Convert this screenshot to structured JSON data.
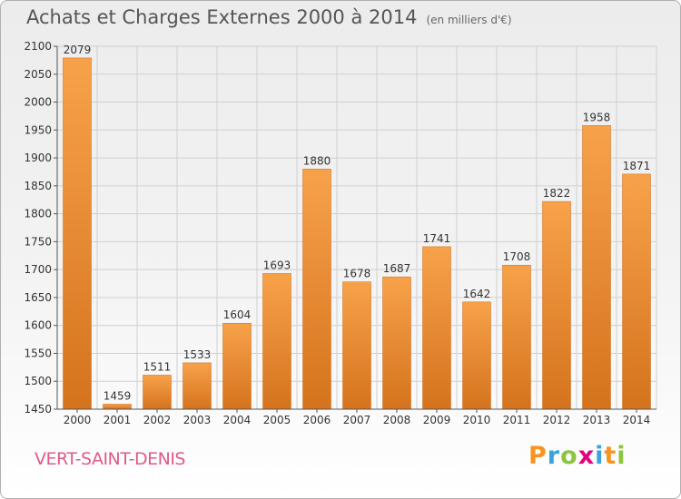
{
  "header": {
    "title": "Achats et Charges Externes 2000 à 2014",
    "unit": "(en milliers d'€)"
  },
  "footer": {
    "commune": "VERT-SAINT-DENIS",
    "logo": "Proxiti"
  },
  "colors": {
    "bar_light": "#f7a24a",
    "bar_dark": "#d5731d",
    "grid": "#d0d0d0",
    "text": "#333333"
  },
  "chart_data": {
    "type": "bar",
    "title": "Achats et Charges Externes 2000 à 2014",
    "subtitle": "(en milliers d'€)",
    "categories": [
      "2000",
      "2001",
      "2002",
      "2003",
      "2004",
      "2005",
      "2006",
      "2007",
      "2008",
      "2009",
      "2010",
      "2011",
      "2012",
      "2013",
      "2014"
    ],
    "values": [
      2079,
      1459,
      1511,
      1533,
      1604,
      1693,
      1880,
      1678,
      1687,
      1741,
      1642,
      1708,
      1822,
      1958,
      1871
    ],
    "ylim": [
      1450,
      2100
    ],
    "yticks": [
      1450,
      1500,
      1550,
      1600,
      1650,
      1700,
      1750,
      1800,
      1850,
      1900,
      1950,
      2000,
      2050,
      2100
    ],
    "grid": true,
    "data_labels": true
  }
}
